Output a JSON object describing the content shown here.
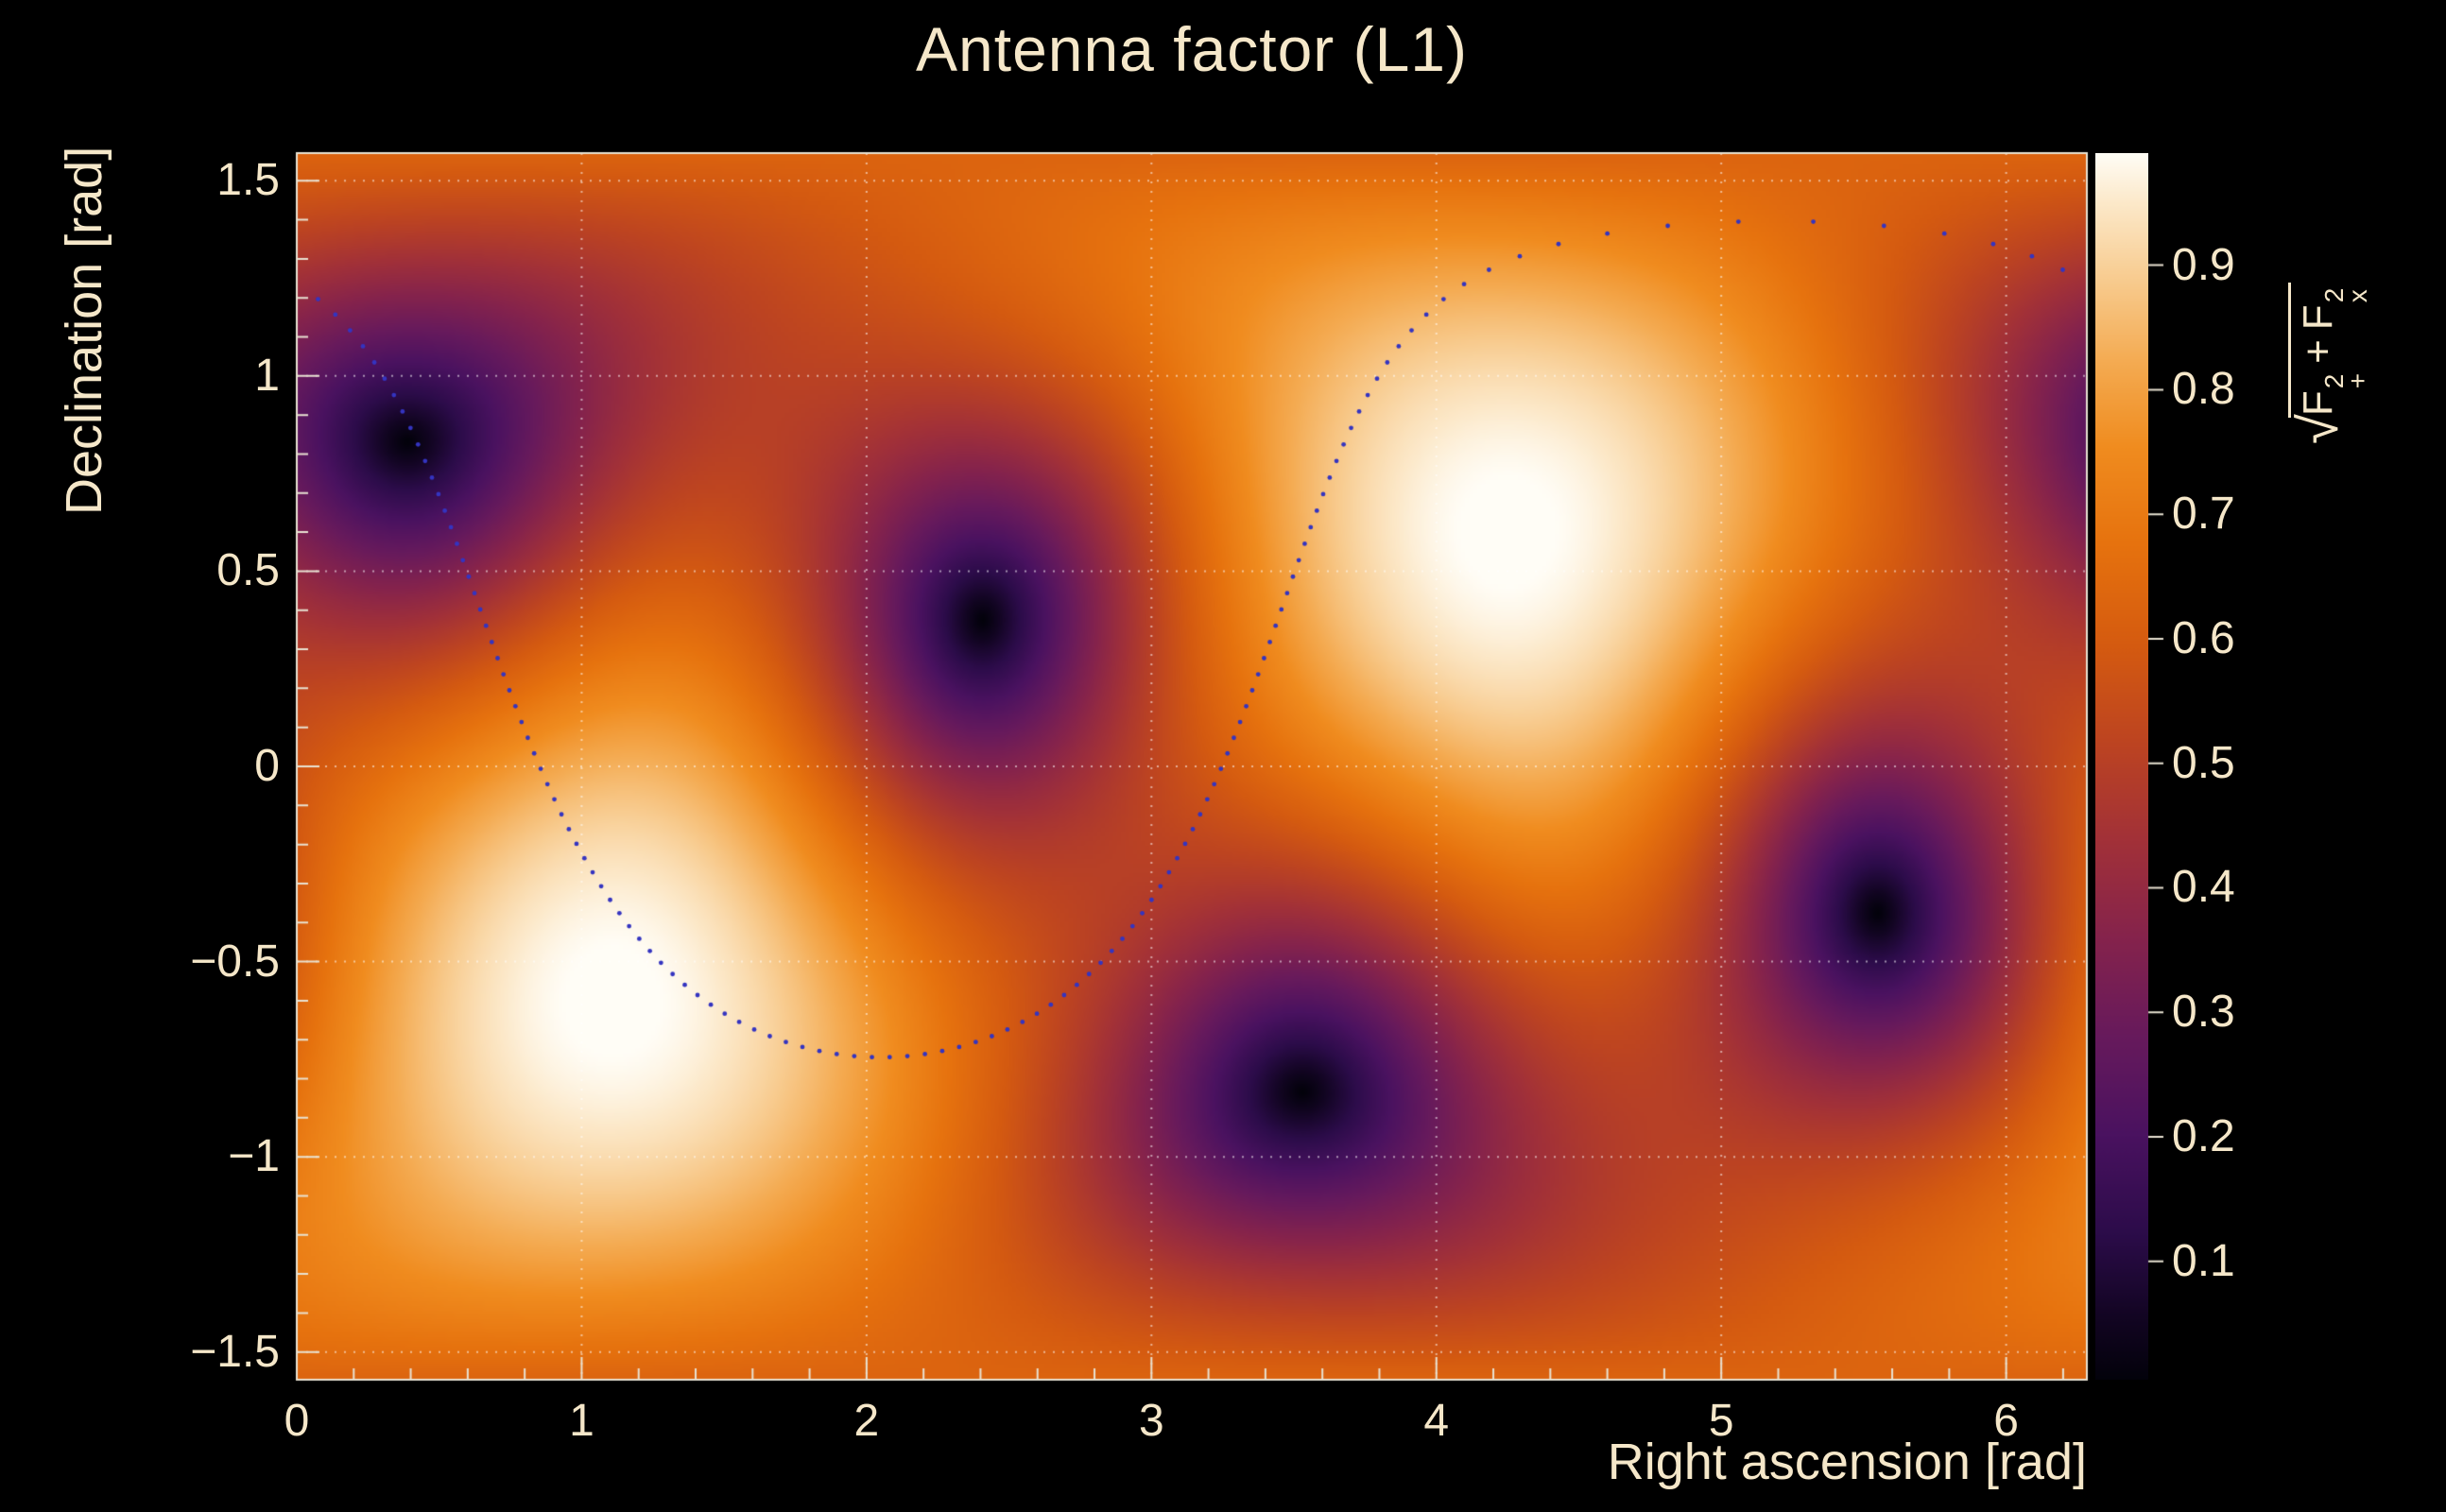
{
  "title": "Antenna factor (L1)",
  "axes": {
    "x": {
      "label": "Right ascension [rad]",
      "min": 0,
      "max": 6.2832,
      "minor_step": 0.2,
      "ticks": [
        {
          "v": 0,
          "label": "0"
        },
        {
          "v": 1,
          "label": "1"
        },
        {
          "v": 2,
          "label": "2"
        },
        {
          "v": 3,
          "label": "3"
        },
        {
          "v": 4,
          "label": "4"
        },
        {
          "v": 5,
          "label": "5"
        },
        {
          "v": 6,
          "label": "6"
        }
      ]
    },
    "y": {
      "label": "Declination [rad]",
      "min": -1.5708,
      "max": 1.5708,
      "minor_step": 0.1,
      "ticks": [
        {
          "v": 1.5,
          "label": "1.5"
        },
        {
          "v": 1.0,
          "label": "1"
        },
        {
          "v": 0.5,
          "label": "0.5"
        },
        {
          "v": 0.0,
          "label": "0"
        },
        {
          "v": -0.5,
          "label": "−0.5"
        },
        {
          "v": -1.0,
          "label": "−1"
        },
        {
          "v": -1.5,
          "label": "−1.5"
        }
      ]
    }
  },
  "colorbar": {
    "zmin": 0.005,
    "zmax": 0.99,
    "ticks": [
      {
        "v": 0.1,
        "label": "0.1"
      },
      {
        "v": 0.2,
        "label": "0.2"
      },
      {
        "v": 0.3,
        "label": "0.3"
      },
      {
        "v": 0.4,
        "label": "0.4"
      },
      {
        "v": 0.5,
        "label": "0.5"
      },
      {
        "v": 0.6,
        "label": "0.6"
      },
      {
        "v": 0.7,
        "label": "0.7"
      },
      {
        "v": 0.8,
        "label": "0.8"
      },
      {
        "v": 0.9,
        "label": "0.9"
      }
    ],
    "title_parts": {
      "radical": "√",
      "f": "F",
      "sup": "2",
      "sub_plus": "+",
      "plus": "+",
      "sub_x": "x"
    }
  },
  "chart_data": {
    "type": "heatmap",
    "title": "Antenna factor (L1)",
    "xlabel": "Right ascension [rad]",
    "ylabel": "Declination [rad]",
    "zlabel": "sqrt(F_plus^2 + F_cross^2)",
    "x_range": [
      0,
      6.2832
    ],
    "y_range": [
      -1.5708,
      1.5708
    ],
    "z_range": [
      0.0,
      1.0
    ],
    "legend": "none",
    "grid": {
      "style": "dotted",
      "color": "rgba(255,255,255,0.55)",
      "x_lines": [
        1,
        2,
        3,
        4,
        5,
        6
      ],
      "y_lines": [
        -1.5,
        -1.0,
        -0.5,
        0.0,
        0.5,
        1.0,
        1.5
      ]
    },
    "model": {
      "description": "RMS antenna pattern sqrt(F+^2 + Fx^2) of an L-shaped interferometer (L1) over the sky",
      "zenith": {
        "ra": 4.25,
        "dec": 0.6
      },
      "null_reference": {
        "ra": 0.35,
        "dec": 0.87
      },
      "maxima": [
        {
          "ra": 4.25,
          "dec": 0.6,
          "value": 1.0
        },
        {
          "ra": 1.11,
          "dec": -0.6,
          "value": 1.0
        }
      ],
      "nulls": [
        {
          "ra": 0.35,
          "dec": 0.87,
          "value": 0.0
        },
        {
          "ra": 2.4,
          "dec": 0.4,
          "value": 0.0
        },
        {
          "ra": 3.46,
          "dec": -0.87,
          "value": 0.0
        },
        {
          "ra": 5.55,
          "dec": -0.4,
          "value": 0.0
        }
      ],
      "saddle_value": 0.5
    },
    "overlay_ring": {
      "description": "dotted sky ring of sample points",
      "center_ra": 2.05,
      "center_dec": 0.5,
      "radius": 1.245,
      "n_points": 130,
      "dot_color": "#3434c0",
      "dot_radius_px": 2.4
    },
    "colormap": {
      "stops": [
        [
          0.0,
          "#03020b"
        ],
        [
          0.05,
          "#120522"
        ],
        [
          0.12,
          "#2c0c4a"
        ],
        [
          0.2,
          "#4a1260"
        ],
        [
          0.28,
          "#671a5c"
        ],
        [
          0.36,
          "#85234c"
        ],
        [
          0.44,
          "#a23138"
        ],
        [
          0.52,
          "#bd4421"
        ],
        [
          0.6,
          "#d55b10"
        ],
        [
          0.68,
          "#e6720e"
        ],
        [
          0.76,
          "#f08c1f"
        ],
        [
          0.83,
          "#f4ab52"
        ],
        [
          0.9,
          "#f8cd92"
        ],
        [
          0.96,
          "#fce9ca"
        ],
        [
          1.0,
          "#fffdf6"
        ]
      ]
    }
  },
  "colors": {
    "background": "#000000",
    "text": "#f5e7c9",
    "frame": "#e8e2d2",
    "accent_dots": "#3434c0"
  }
}
